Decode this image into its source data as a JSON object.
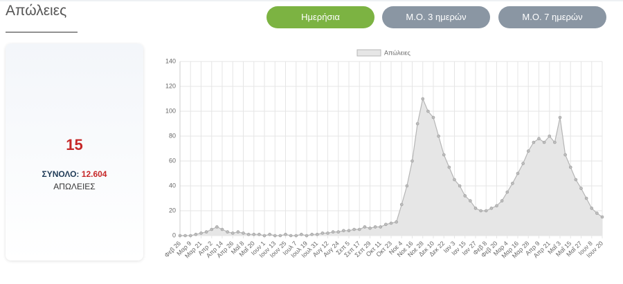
{
  "header": {
    "title": "Απώλειες"
  },
  "buttons": [
    "Ημερήσια",
    "Μ.Ο. 3 ημερών",
    "Μ.Ο. 7 ημερών"
  ],
  "summary": {
    "today": "15",
    "total_label": "ΣΥΝΟΛΟ:",
    "total": "12.604",
    "unit": "ΑΠΩΛΕΙΕΣ"
  },
  "chart_data": {
    "type": "line",
    "categories": [
      "Φεβ 26",
      null,
      "Μαρ 9",
      null,
      "Μαρ 21",
      null,
      "Απρ 2",
      null,
      "Απρ 14",
      null,
      "Απρ 26",
      null,
      "Μαΐ 8",
      null,
      "Μαΐ 20",
      null,
      "Ιουν 1",
      null,
      "Ιουν 13",
      null,
      "Ιουν 25",
      null,
      "Ιουλ 7",
      null,
      "Ιουλ 19",
      null,
      "Ιουλ 31",
      null,
      "Αυγ 12",
      null,
      "Αυγ 24",
      null,
      "Σεπ 5",
      null,
      "Σεπ 17",
      null,
      "Σεπ 29",
      null,
      "Οκτ 11",
      null,
      "Οκτ 23",
      null,
      "Νοε 4",
      null,
      "Νοε 16",
      null,
      "Νοε 28",
      null,
      "Δεκ 10",
      null,
      "Δεκ 22",
      null,
      "Ιαν 3",
      null,
      "Ιαν 15",
      null,
      "Ιαν 27",
      null,
      "Φεβ 8",
      null,
      "Φεβ 20",
      null,
      "Μαρ 4",
      null,
      "Μαρ 16",
      null,
      "Μαρ 28",
      null,
      "Απρ 9",
      null,
      "Απρ 21",
      null,
      "Μαΐ 3",
      null,
      "Μαΐ 15",
      null,
      "Μαΐ 27",
      null,
      "Ιουν 8",
      null,
      "Ιουν 20"
    ],
    "series": [
      {
        "name": "Απώλειες",
        "color": "#b5b5b5",
        "values": [
          0,
          0,
          0,
          1,
          2,
          3,
          5,
          7,
          5,
          3,
          2,
          3,
          2,
          1,
          1,
          1,
          0,
          1,
          0,
          0,
          1,
          0,
          0,
          1,
          0,
          1,
          1,
          2,
          2,
          3,
          3,
          4,
          4,
          5,
          5,
          7,
          6,
          7,
          7,
          9,
          10,
          11,
          25,
          40,
          60,
          90,
          110,
          100,
          95,
          80,
          65,
          55,
          45,
          40,
          32,
          28,
          22,
          20,
          20,
          22,
          24,
          28,
          35,
          42,
          50,
          58,
          68,
          75,
          78,
          75,
          80,
          75,
          95,
          65,
          55,
          45,
          38,
          30,
          22,
          18,
          15
        ]
      }
    ],
    "ylim": [
      0,
      140
    ],
    "yticks": [
      0,
      20,
      40,
      60,
      80,
      100,
      120,
      140
    ],
    "grid": true
  }
}
